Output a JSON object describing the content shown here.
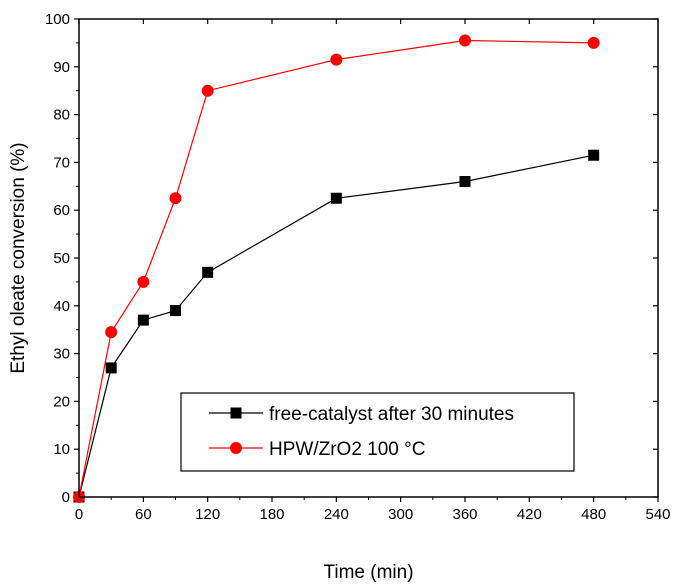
{
  "chart_data": {
    "type": "line",
    "title": "",
    "xlabel": "Time (min)",
    "ylabel": "Ethyl oleate conversion (%)",
    "xlim": [
      0,
      540
    ],
    "ylim": [
      0,
      100
    ],
    "xticks": [
      0,
      60,
      120,
      180,
      240,
      300,
      360,
      420,
      480,
      540
    ],
    "yticks": [
      0,
      10,
      20,
      30,
      40,
      50,
      60,
      70,
      80,
      90,
      100
    ],
    "grid": false,
    "legend_position": "bottom-right",
    "series": [
      {
        "name": "free-catalyst after 30 minutes",
        "marker": "square",
        "color": "#000000",
        "line_color": "#000000",
        "x": [
          0,
          30,
          60,
          90,
          120,
          240,
          360,
          480
        ],
        "y": [
          0,
          27,
          37,
          39,
          47,
          62.5,
          66,
          71.5
        ]
      },
      {
        "name": "HPW/ZrO2 100 °C",
        "marker": "circle",
        "color": "#ff0000",
        "line_color": "#ff0000",
        "x": [
          0,
          30,
          60,
          90,
          120,
          240,
          360,
          480
        ],
        "y": [
          0,
          34.5,
          45,
          62.5,
          85,
          91.5,
          95.5,
          95
        ]
      }
    ]
  }
}
